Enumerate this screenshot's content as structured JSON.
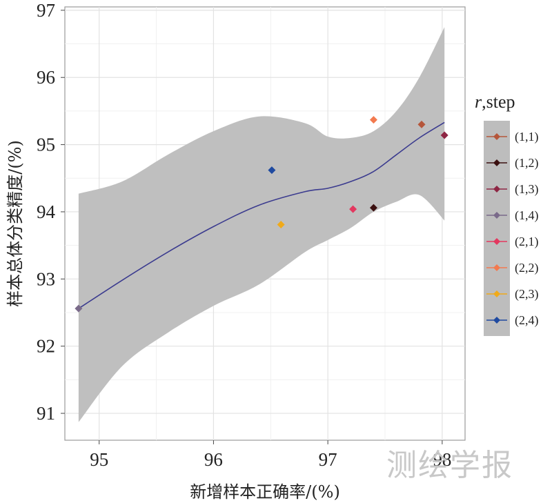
{
  "chart_data": {
    "type": "scatter",
    "title": "",
    "xlabel": "新增样本正确率/(%)",
    "ylabel": "样本总体分类精度/(%)",
    "xlim": [
      94.7,
      98.2
    ],
    "ylim": [
      90.6,
      97.05
    ],
    "xticks": [
      95,
      96,
      97,
      98
    ],
    "xtick_labels": [
      "95",
      "96",
      "97",
      "98"
    ],
    "yticks": [
      91,
      92,
      93,
      94,
      95,
      96,
      97
    ],
    "ytick_labels": [
      "91",
      "92",
      "93",
      "94",
      "95",
      "96",
      "97"
    ],
    "grid": true,
    "legend": {
      "title_italic": "r",
      "title_rest": ",step",
      "placement": "right"
    },
    "series": [
      {
        "name": "(1,1)",
        "color": "#b5563a",
        "x": 97.82,
        "y": 95.3
      },
      {
        "name": "(1,2)",
        "color": "#3b1010",
        "x": 97.4,
        "y": 94.06
      },
      {
        "name": "(1,3)",
        "color": "#8e2644",
        "x": 98.02,
        "y": 95.14
      },
      {
        "name": "(1,4)",
        "color": "#7a6a8a",
        "x": 94.82,
        "y": 92.56
      },
      {
        "name": "(2,1)",
        "color": "#e3385f",
        "x": 97.22,
        "y": 94.04
      },
      {
        "name": "(2,2)",
        "color": "#f37a4f",
        "x": 97.4,
        "y": 95.37
      },
      {
        "name": "(2,3)",
        "color": "#f0aa1a",
        "x": 96.59,
        "y": 93.81
      },
      {
        "name": "(2,4)",
        "color": "#1f4aa0",
        "x": 96.51,
        "y": 94.62
      }
    ],
    "smooth": {
      "color": "#3b3b8f",
      "fit": {
        "x": [
          94.82,
          95.2,
          95.6,
          96.0,
          96.4,
          96.8,
          97.0,
          97.2,
          97.4,
          97.6,
          97.8,
          98.02
        ],
        "y": [
          92.56,
          92.98,
          93.4,
          93.78,
          94.1,
          94.3,
          94.35,
          94.45,
          94.6,
          94.85,
          95.1,
          95.33
        ]
      },
      "upper": [
        94.27,
        94.45,
        94.85,
        95.2,
        95.42,
        95.32,
        95.12,
        95.1,
        95.2,
        95.5,
        96.0,
        96.75
      ],
      "lower": [
        90.87,
        91.7,
        92.2,
        92.6,
        92.92,
        93.4,
        93.58,
        93.76,
        94.0,
        94.15,
        94.25,
        93.87
      ]
    }
  },
  "watermark": "测绘学报"
}
